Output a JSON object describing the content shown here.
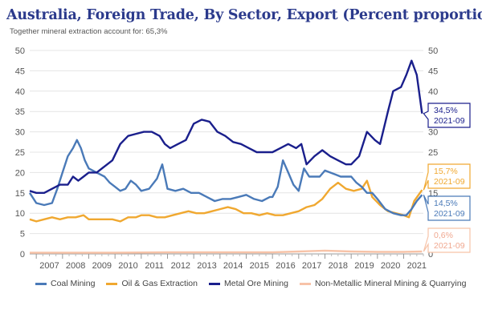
{
  "title": "Australia, Foreign Trade, By Sector, Export (Percent proportion)",
  "subtitle": "Together mineral extraction account for: 65,3%",
  "chart_data": {
    "type": "line",
    "title": "Australia, Foreign Trade, By Sector, Export (Percent proportion)",
    "ylim": [
      0,
      50
    ],
    "y_ticks": [
      "0",
      "5",
      "10",
      "15",
      "20",
      "25",
      "30",
      "35",
      "40",
      "45",
      "50"
    ],
    "x_ticks": [
      "2007",
      "2008",
      "2009",
      "2010",
      "2011",
      "2012",
      "2013",
      "2014",
      "2015",
      "2016",
      "2017",
      "2018",
      "2019",
      "2020",
      "2021"
    ],
    "xlim": [
      2006.75,
      2021.75
    ],
    "series": [
      {
        "name": "Coal Mining",
        "color": "#4a7ab8",
        "last_value_label": "14,5%",
        "last_date_label": "2021-09",
        "points": [
          [
            2006.75,
            15
          ],
          [
            2007.0,
            12.5
          ],
          [
            2007.3,
            12
          ],
          [
            2007.6,
            12.5
          ],
          [
            2007.8,
            16
          ],
          [
            2008.0,
            20
          ],
          [
            2008.2,
            24
          ],
          [
            2008.4,
            26
          ],
          [
            2008.55,
            28
          ],
          [
            2008.7,
            26
          ],
          [
            2008.85,
            23
          ],
          [
            2009.0,
            21
          ],
          [
            2009.3,
            20
          ],
          [
            2009.6,
            19
          ],
          [
            2009.8,
            17.5
          ],
          [
            2010.0,
            16.5
          ],
          [
            2010.2,
            15.5
          ],
          [
            2010.4,
            16
          ],
          [
            2010.6,
            18
          ],
          [
            2010.8,
            17
          ],
          [
            2011.0,
            15.5
          ],
          [
            2011.3,
            16
          ],
          [
            2011.6,
            18.5
          ],
          [
            2011.8,
            22
          ],
          [
            2012.0,
            16
          ],
          [
            2012.3,
            15.5
          ],
          [
            2012.6,
            16
          ],
          [
            2012.9,
            15
          ],
          [
            2013.2,
            15
          ],
          [
            2013.5,
            14
          ],
          [
            2013.8,
            13
          ],
          [
            2014.1,
            13.5
          ],
          [
            2014.4,
            13.5
          ],
          [
            2014.7,
            14
          ],
          [
            2015.0,
            14.5
          ],
          [
            2015.3,
            13.5
          ],
          [
            2015.6,
            13
          ],
          [
            2015.9,
            14
          ],
          [
            2016.0,
            14
          ],
          [
            2016.2,
            16.5
          ],
          [
            2016.4,
            23
          ],
          [
            2016.6,
            20
          ],
          [
            2016.8,
            17
          ],
          [
            2017.0,
            15.5
          ],
          [
            2017.2,
            21
          ],
          [
            2017.4,
            19
          ],
          [
            2017.6,
            19
          ],
          [
            2017.8,
            19
          ],
          [
            2018.0,
            20.5
          ],
          [
            2018.2,
            20
          ],
          [
            2018.4,
            19.5
          ],
          [
            2018.6,
            19
          ],
          [
            2018.8,
            19
          ],
          [
            2019.0,
            19
          ],
          [
            2019.2,
            17.5
          ],
          [
            2019.4,
            16.5
          ],
          [
            2019.6,
            15
          ],
          [
            2019.8,
            15
          ],
          [
            2020.0,
            13.5
          ],
          [
            2020.3,
            11
          ],
          [
            2020.6,
            10
          ],
          [
            2020.9,
            9.5
          ],
          [
            2021.1,
            9.5
          ],
          [
            2021.3,
            11
          ],
          [
            2021.5,
            13
          ],
          [
            2021.7,
            14.5
          ]
        ]
      },
      {
        "name": "Oil & Gas Extraction",
        "color": "#f0a830",
        "last_value_label": "15,7%",
        "last_date_label": "2021-09",
        "points": [
          [
            2006.75,
            8.5
          ],
          [
            2007.0,
            8
          ],
          [
            2007.3,
            8.5
          ],
          [
            2007.6,
            9
          ],
          [
            2007.9,
            8.5
          ],
          [
            2008.2,
            9
          ],
          [
            2008.5,
            9
          ],
          [
            2008.8,
            9.5
          ],
          [
            2009.0,
            8.5
          ],
          [
            2009.3,
            8.5
          ],
          [
            2009.6,
            8.5
          ],
          [
            2009.9,
            8.5
          ],
          [
            2010.2,
            8
          ],
          [
            2010.5,
            9
          ],
          [
            2010.8,
            9
          ],
          [
            2011.0,
            9.5
          ],
          [
            2011.3,
            9.5
          ],
          [
            2011.6,
            9
          ],
          [
            2011.9,
            9
          ],
          [
            2012.2,
            9.5
          ],
          [
            2012.5,
            10
          ],
          [
            2012.8,
            10.5
          ],
          [
            2013.1,
            10
          ],
          [
            2013.4,
            10
          ],
          [
            2013.7,
            10.5
          ],
          [
            2014.0,
            11
          ],
          [
            2014.3,
            11.5
          ],
          [
            2014.6,
            11
          ],
          [
            2014.9,
            10
          ],
          [
            2015.2,
            10
          ],
          [
            2015.5,
            9.5
          ],
          [
            2015.8,
            10
          ],
          [
            2016.1,
            9.5
          ],
          [
            2016.4,
            9.5
          ],
          [
            2016.7,
            10
          ],
          [
            2017.0,
            10.5
          ],
          [
            2017.3,
            11.5
          ],
          [
            2017.6,
            12
          ],
          [
            2017.9,
            13.5
          ],
          [
            2018.2,
            16
          ],
          [
            2018.5,
            17.5
          ],
          [
            2018.8,
            16
          ],
          [
            2019.1,
            15.5
          ],
          [
            2019.4,
            16
          ],
          [
            2019.6,
            18
          ],
          [
            2019.8,
            14
          ],
          [
            2020.1,
            12
          ],
          [
            2020.4,
            10.5
          ],
          [
            2020.7,
            10
          ],
          [
            2021.0,
            9.5
          ],
          [
            2021.2,
            9
          ],
          [
            2021.4,
            13
          ],
          [
            2021.7,
            15.7
          ]
        ]
      },
      {
        "name": "Metal Ore Mining",
        "color": "#1a1f8c",
        "last_value_label": "34,5%",
        "last_date_label": "2021-09",
        "points": [
          [
            2006.75,
            15.5
          ],
          [
            2007.0,
            15
          ],
          [
            2007.3,
            15
          ],
          [
            2007.6,
            16
          ],
          [
            2007.9,
            17
          ],
          [
            2008.2,
            17
          ],
          [
            2008.4,
            19
          ],
          [
            2008.6,
            18
          ],
          [
            2008.8,
            19
          ],
          [
            2009.0,
            20
          ],
          [
            2009.3,
            20
          ],
          [
            2009.6,
            21.5
          ],
          [
            2009.9,
            23
          ],
          [
            2010.2,
            27
          ],
          [
            2010.5,
            29
          ],
          [
            2010.8,
            29.5
          ],
          [
            2011.1,
            30
          ],
          [
            2011.4,
            30
          ],
          [
            2011.7,
            29
          ],
          [
            2011.9,
            27
          ],
          [
            2012.1,
            26
          ],
          [
            2012.4,
            27
          ],
          [
            2012.7,
            28
          ],
          [
            2013.0,
            32
          ],
          [
            2013.3,
            33
          ],
          [
            2013.6,
            32.5
          ],
          [
            2013.9,
            30
          ],
          [
            2014.2,
            29
          ],
          [
            2014.5,
            27.5
          ],
          [
            2014.8,
            27
          ],
          [
            2015.1,
            26
          ],
          [
            2015.4,
            25
          ],
          [
            2015.7,
            25
          ],
          [
            2016.0,
            25
          ],
          [
            2016.3,
            26
          ],
          [
            2016.6,
            27
          ],
          [
            2016.9,
            26
          ],
          [
            2017.1,
            27
          ],
          [
            2017.3,
            22
          ],
          [
            2017.6,
            24
          ],
          [
            2017.9,
            25.5
          ],
          [
            2018.2,
            24
          ],
          [
            2018.5,
            23
          ],
          [
            2018.8,
            22
          ],
          [
            2019.0,
            22
          ],
          [
            2019.3,
            24
          ],
          [
            2019.6,
            30
          ],
          [
            2019.9,
            28
          ],
          [
            2020.1,
            27
          ],
          [
            2020.4,
            35
          ],
          [
            2020.6,
            40
          ],
          [
            2020.9,
            41
          ],
          [
            2021.1,
            44
          ],
          [
            2021.3,
            47.5
          ],
          [
            2021.5,
            44
          ],
          [
            2021.7,
            34.5
          ]
        ]
      },
      {
        "name": "Non-Metallic Mineral Mining & Quarrying",
        "color": "#f7c3a8",
        "last_value_label": "0,6%",
        "last_date_label": "2021-09",
        "points": [
          [
            2006.75,
            0.3
          ],
          [
            2008,
            0.3
          ],
          [
            2010,
            0.3
          ],
          [
            2012,
            0.4
          ],
          [
            2014,
            0.4
          ],
          [
            2016,
            0.4
          ],
          [
            2017,
            0.6
          ],
          [
            2018,
            0.8
          ],
          [
            2019,
            0.6
          ],
          [
            2020,
            0.5
          ],
          [
            2021,
            0.5
          ],
          [
            2021.7,
            0.6
          ]
        ]
      }
    ]
  }
}
